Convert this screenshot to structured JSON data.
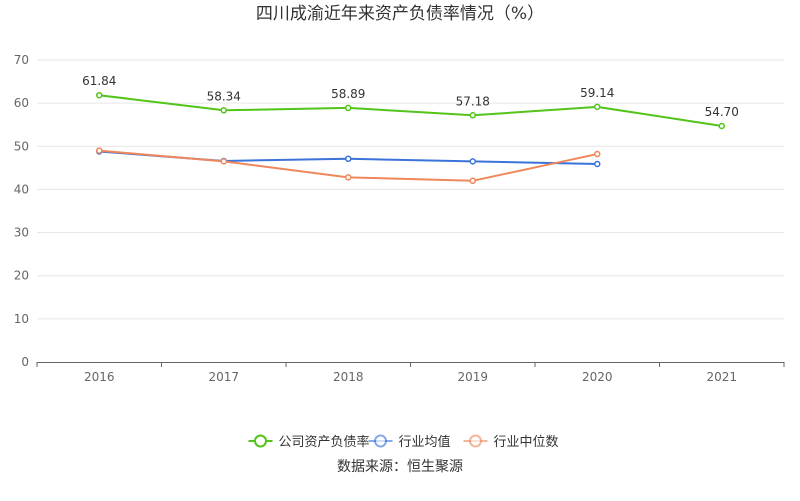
{
  "chart_data": {
    "type": "line",
    "title": "四川成渝近年来资产负债率情况（%）",
    "categories": [
      "2016",
      "2017",
      "2018",
      "2019",
      "2020",
      "2021"
    ],
    "ylim": [
      0,
      70
    ],
    "yticks": [
      0,
      10,
      20,
      30,
      40,
      50,
      60,
      70
    ],
    "grid": true,
    "legend_position": "bottom",
    "series": [
      {
        "name": "公司资产负债率",
        "color": "#52c41a",
        "labels": true,
        "values": [
          61.84,
          58.34,
          58.89,
          57.18,
          59.14,
          54.7
        ],
        "display": [
          "61.84",
          "58.34",
          "58.89",
          "57.18",
          "59.14",
          "54.70"
        ]
      },
      {
        "name": "行业均值",
        "color": "#3b73d9",
        "labels": false,
        "values": [
          48.8,
          46.6,
          47.1,
          46.5,
          45.9,
          null
        ]
      },
      {
        "name": "行业中位数",
        "color": "#f0875a",
        "labels": false,
        "values": [
          49.0,
          46.5,
          42.8,
          42.0,
          48.2,
          null
        ]
      }
    ],
    "source": "数据来源：恒生聚源"
  }
}
